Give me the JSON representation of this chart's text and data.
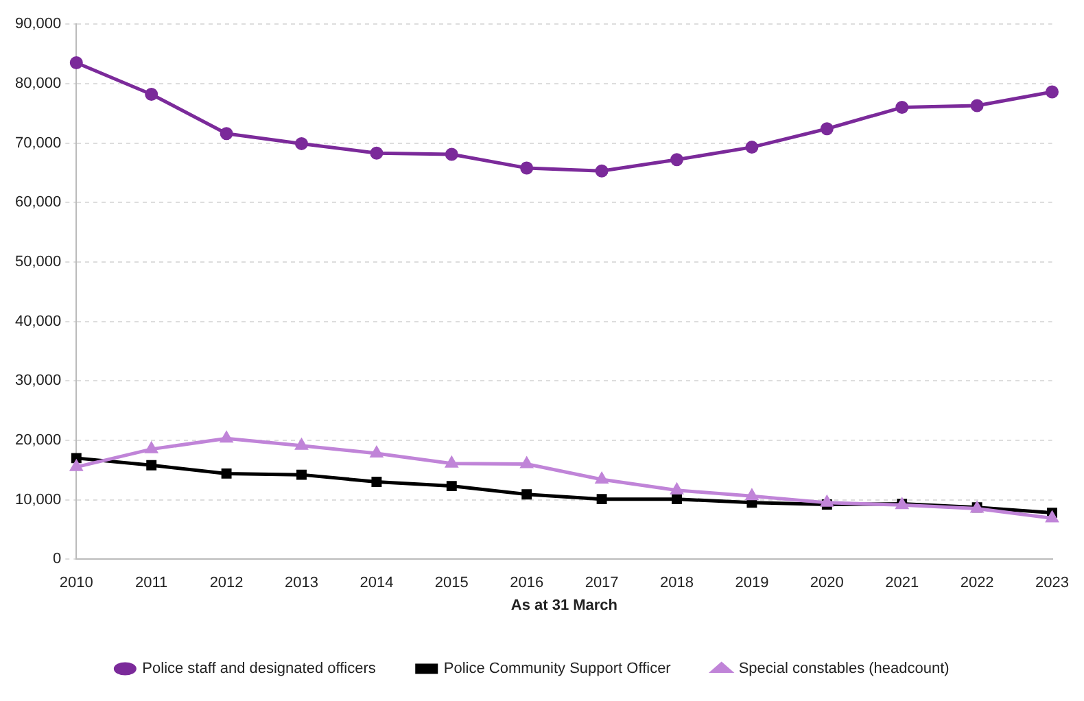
{
  "chart_data": {
    "type": "line",
    "xlabel": "As at 31 March",
    "categories": [
      "2010",
      "2011",
      "2012",
      "2013",
      "2014",
      "2015",
      "2016",
      "2017",
      "2018",
      "2019",
      "2020",
      "2021",
      "2022",
      "2023"
    ],
    "series": [
      {
        "name": "Police staff and designated officers",
        "color": "#7b2a9a",
        "marker": "circle",
        "values": [
          83500,
          78200,
          71600,
          69900,
          68300,
          68100,
          65800,
          65300,
          67200,
          69300,
          72400,
          76000,
          76300,
          78600
        ]
      },
      {
        "name": "Police Community Support Officer",
        "color": "#000000",
        "marker": "square",
        "values": [
          17000,
          15800,
          14400,
          14200,
          13000,
          12300,
          10900,
          10100,
          10100,
          9500,
          9200,
          9300,
          8700,
          7800
        ]
      },
      {
        "name": "Special constables (headcount)",
        "color": "#c084d8",
        "marker": "triangle",
        "values": [
          15500,
          18500,
          20300,
          19100,
          17800,
          16100,
          16000,
          13400,
          11600,
          10600,
          9500,
          9100,
          8500,
          6900
        ]
      }
    ],
    "ylim": [
      0,
      90000
    ],
    "yticks": [
      0,
      {
        "value": 10000,
        "label": "10,000"
      },
      {
        "value": 20000,
        "label": "20,000"
      },
      {
        "value": 30000,
        "label": "30,000"
      },
      {
        "value": 40000,
        "label": "40,000"
      },
      {
        "value": 50000,
        "label": "50,000"
      },
      {
        "value": 60000,
        "label": "60,000"
      },
      {
        "value": 70000,
        "label": "70,000"
      },
      {
        "value": 80000,
        "label": "80,000"
      },
      {
        "value": 90000,
        "label": "90,000"
      }
    ],
    "grid": "y",
    "legend": "bottom",
    "line_style": "solid"
  }
}
